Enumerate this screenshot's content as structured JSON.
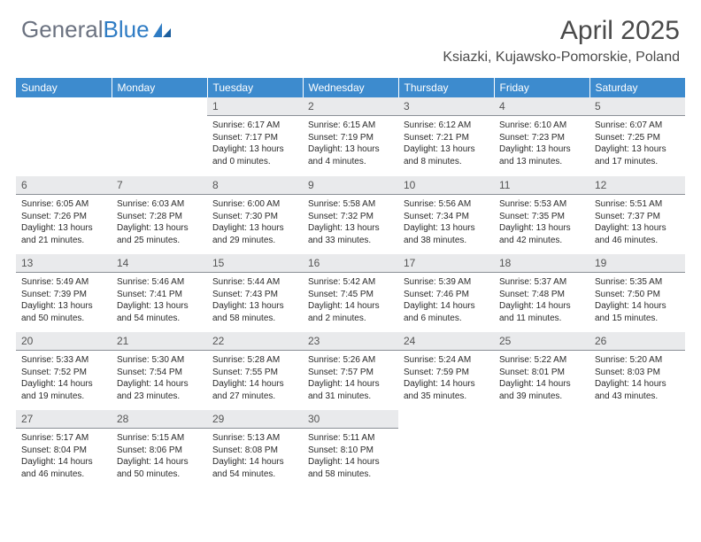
{
  "logo": {
    "text_gray": "General",
    "text_blue": "Blue"
  },
  "header": {
    "month_title": "April 2025",
    "location": "Ksiazki, Kujawsko-Pomorskie, Poland"
  },
  "colors": {
    "header_bg": "#3d8bce",
    "daynum_bg": "#e9eaec",
    "daynum_border": "#8a8f96",
    "logo_gray": "#6b7280",
    "logo_blue": "#2f7cc4"
  },
  "daynames": [
    "Sunday",
    "Monday",
    "Tuesday",
    "Wednesday",
    "Thursday",
    "Friday",
    "Saturday"
  ],
  "weeks": [
    [
      null,
      null,
      {
        "n": "1",
        "sr": "Sunrise: 6:17 AM",
        "ss": "Sunset: 7:17 PM",
        "dl": "Daylight: 13 hours and 0 minutes."
      },
      {
        "n": "2",
        "sr": "Sunrise: 6:15 AM",
        "ss": "Sunset: 7:19 PM",
        "dl": "Daylight: 13 hours and 4 minutes."
      },
      {
        "n": "3",
        "sr": "Sunrise: 6:12 AM",
        "ss": "Sunset: 7:21 PM",
        "dl": "Daylight: 13 hours and 8 minutes."
      },
      {
        "n": "4",
        "sr": "Sunrise: 6:10 AM",
        "ss": "Sunset: 7:23 PM",
        "dl": "Daylight: 13 hours and 13 minutes."
      },
      {
        "n": "5",
        "sr": "Sunrise: 6:07 AM",
        "ss": "Sunset: 7:25 PM",
        "dl": "Daylight: 13 hours and 17 minutes."
      }
    ],
    [
      {
        "n": "6",
        "sr": "Sunrise: 6:05 AM",
        "ss": "Sunset: 7:26 PM",
        "dl": "Daylight: 13 hours and 21 minutes."
      },
      {
        "n": "7",
        "sr": "Sunrise: 6:03 AM",
        "ss": "Sunset: 7:28 PM",
        "dl": "Daylight: 13 hours and 25 minutes."
      },
      {
        "n": "8",
        "sr": "Sunrise: 6:00 AM",
        "ss": "Sunset: 7:30 PM",
        "dl": "Daylight: 13 hours and 29 minutes."
      },
      {
        "n": "9",
        "sr": "Sunrise: 5:58 AM",
        "ss": "Sunset: 7:32 PM",
        "dl": "Daylight: 13 hours and 33 minutes."
      },
      {
        "n": "10",
        "sr": "Sunrise: 5:56 AM",
        "ss": "Sunset: 7:34 PM",
        "dl": "Daylight: 13 hours and 38 minutes."
      },
      {
        "n": "11",
        "sr": "Sunrise: 5:53 AM",
        "ss": "Sunset: 7:35 PM",
        "dl": "Daylight: 13 hours and 42 minutes."
      },
      {
        "n": "12",
        "sr": "Sunrise: 5:51 AM",
        "ss": "Sunset: 7:37 PM",
        "dl": "Daylight: 13 hours and 46 minutes."
      }
    ],
    [
      {
        "n": "13",
        "sr": "Sunrise: 5:49 AM",
        "ss": "Sunset: 7:39 PM",
        "dl": "Daylight: 13 hours and 50 minutes."
      },
      {
        "n": "14",
        "sr": "Sunrise: 5:46 AM",
        "ss": "Sunset: 7:41 PM",
        "dl": "Daylight: 13 hours and 54 minutes."
      },
      {
        "n": "15",
        "sr": "Sunrise: 5:44 AM",
        "ss": "Sunset: 7:43 PM",
        "dl": "Daylight: 13 hours and 58 minutes."
      },
      {
        "n": "16",
        "sr": "Sunrise: 5:42 AM",
        "ss": "Sunset: 7:45 PM",
        "dl": "Daylight: 14 hours and 2 minutes."
      },
      {
        "n": "17",
        "sr": "Sunrise: 5:39 AM",
        "ss": "Sunset: 7:46 PM",
        "dl": "Daylight: 14 hours and 6 minutes."
      },
      {
        "n": "18",
        "sr": "Sunrise: 5:37 AM",
        "ss": "Sunset: 7:48 PM",
        "dl": "Daylight: 14 hours and 11 minutes."
      },
      {
        "n": "19",
        "sr": "Sunrise: 5:35 AM",
        "ss": "Sunset: 7:50 PM",
        "dl": "Daylight: 14 hours and 15 minutes."
      }
    ],
    [
      {
        "n": "20",
        "sr": "Sunrise: 5:33 AM",
        "ss": "Sunset: 7:52 PM",
        "dl": "Daylight: 14 hours and 19 minutes."
      },
      {
        "n": "21",
        "sr": "Sunrise: 5:30 AM",
        "ss": "Sunset: 7:54 PM",
        "dl": "Daylight: 14 hours and 23 minutes."
      },
      {
        "n": "22",
        "sr": "Sunrise: 5:28 AM",
        "ss": "Sunset: 7:55 PM",
        "dl": "Daylight: 14 hours and 27 minutes."
      },
      {
        "n": "23",
        "sr": "Sunrise: 5:26 AM",
        "ss": "Sunset: 7:57 PM",
        "dl": "Daylight: 14 hours and 31 minutes."
      },
      {
        "n": "24",
        "sr": "Sunrise: 5:24 AM",
        "ss": "Sunset: 7:59 PM",
        "dl": "Daylight: 14 hours and 35 minutes."
      },
      {
        "n": "25",
        "sr": "Sunrise: 5:22 AM",
        "ss": "Sunset: 8:01 PM",
        "dl": "Daylight: 14 hours and 39 minutes."
      },
      {
        "n": "26",
        "sr": "Sunrise: 5:20 AM",
        "ss": "Sunset: 8:03 PM",
        "dl": "Daylight: 14 hours and 43 minutes."
      }
    ],
    [
      {
        "n": "27",
        "sr": "Sunrise: 5:17 AM",
        "ss": "Sunset: 8:04 PM",
        "dl": "Daylight: 14 hours and 46 minutes."
      },
      {
        "n": "28",
        "sr": "Sunrise: 5:15 AM",
        "ss": "Sunset: 8:06 PM",
        "dl": "Daylight: 14 hours and 50 minutes."
      },
      {
        "n": "29",
        "sr": "Sunrise: 5:13 AM",
        "ss": "Sunset: 8:08 PM",
        "dl": "Daylight: 14 hours and 54 minutes."
      },
      {
        "n": "30",
        "sr": "Sunrise: 5:11 AM",
        "ss": "Sunset: 8:10 PM",
        "dl": "Daylight: 14 hours and 58 minutes."
      },
      null,
      null,
      null
    ]
  ]
}
